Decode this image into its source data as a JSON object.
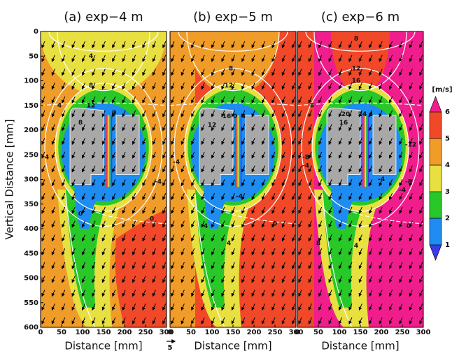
{
  "chart_data": {
    "type": "contour-panels",
    "panels": [
      {
        "title": "(a) exp−4 m",
        "xlabel": "Distance [mm]",
        "ylabel": "Vertical Distance [mm]",
        "xlim": [
          0,
          300
        ],
        "ylim": [
          0,
          600
        ],
        "xticks": [
          0,
          50,
          100,
          150,
          200,
          250,
          300
        ],
        "yticks": [
          0,
          50,
          100,
          150,
          200,
          250,
          300,
          350,
          400,
          450,
          500,
          550,
          600
        ],
        "annotations": [
          {
            "value": 4,
            "x": 120,
            "y": 50
          },
          {
            "value": 8,
            "x": 120,
            "y": 110
          },
          {
            "value": 12,
            "x": 120,
            "y": 150
          },
          {
            "value": 4,
            "x": 45,
            "y": 150
          },
          {
            "value": 8,
            "x": 95,
            "y": 185
          },
          {
            "value": 0,
            "x": 175,
            "y": 165
          },
          {
            "value": 4,
            "x": 15,
            "y": 255
          },
          {
            "value": -4,
            "x": 280,
            "y": 305
          },
          {
            "value": 0,
            "x": 95,
            "y": 370
          },
          {
            "value": 0,
            "x": 265,
            "y": 380
          }
        ]
      },
      {
        "title": "(b) exp−5 m",
        "xlabel": "Distance [mm]",
        "xlim": [
          0,
          300
        ],
        "ylim": [
          0,
          600
        ],
        "xticks": [
          0,
          50,
          100,
          150,
          200,
          250,
          300
        ],
        "annotations": [
          {
            "value": 8,
            "x": 145,
            "y": 75
          },
          {
            "value": 12,
            "x": 140,
            "y": 110
          },
          {
            "value": 12,
            "x": 100,
            "y": 190
          },
          {
            "value": 16,
            "x": 135,
            "y": 172
          },
          {
            "value": 0,
            "x": 155,
            "y": 172
          },
          {
            "value": 4,
            "x": 175,
            "y": 172
          },
          {
            "value": -4,
            "x": 15,
            "y": 265
          },
          {
            "value": -4,
            "x": 165,
            "y": 335
          },
          {
            "value": 4,
            "x": 85,
            "y": 395
          },
          {
            "value": 0,
            "x": 250,
            "y": 390
          },
          {
            "value": 4,
            "x": 140,
            "y": 430
          }
        ]
      },
      {
        "title": "(c) exp−6 m",
        "xlabel": "Distance [mm]",
        "xlim": [
          0,
          300
        ],
        "ylim": [
          0,
          600
        ],
        "xticks": [
          0,
          50,
          100,
          150,
          200,
          250,
          300
        ],
        "annotations": [
          {
            "value": 8,
            "x": 140,
            "y": 15
          },
          {
            "value": 12,
            "x": 140,
            "y": 75
          },
          {
            "value": 16,
            "x": 140,
            "y": 100
          },
          {
            "value": 8,
            "x": 35,
            "y": 150
          },
          {
            "value": 20,
            "x": 115,
            "y": 168
          },
          {
            "value": 16,
            "x": 110,
            "y": 185
          },
          {
            "value": 24,
            "x": 155,
            "y": 168
          },
          {
            "value": 4,
            "x": 175,
            "y": 168
          },
          {
            "value": -12,
            "x": 270,
            "y": 230
          },
          {
            "value": -8,
            "x": 20,
            "y": 255
          },
          {
            "value": -4,
            "x": 20,
            "y": 272
          },
          {
            "value": -4,
            "x": 200,
            "y": 300
          },
          {
            "value": -8,
            "x": 265,
            "y": 305
          },
          {
            "value": -4,
            "x": 250,
            "y": 322
          },
          {
            "value": 8,
            "x": 50,
            "y": 430
          },
          {
            "value": 0,
            "x": 265,
            "y": 395
          },
          {
            "value": 4,
            "x": 140,
            "y": 435
          }
        ]
      }
    ],
    "colorbar": {
      "label": "[m/s]",
      "levels": [
        1,
        2,
        3,
        4,
        5,
        6
      ],
      "colors": [
        "#3a3ae8",
        "#1e8cf0",
        "#28c828",
        "#e8e040",
        "#f09c28",
        "#f04828",
        "#f01e8c"
      ]
    },
    "vector_scale": 5
  }
}
